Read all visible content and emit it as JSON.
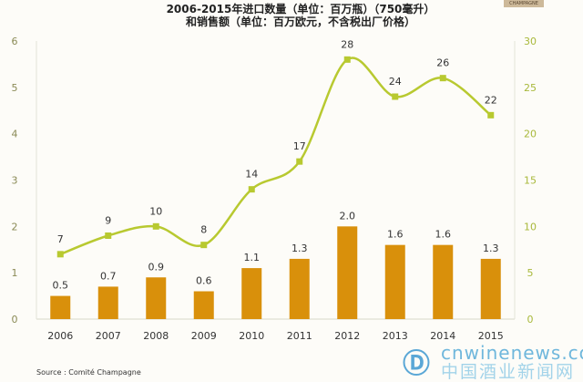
{
  "title_line1": "2006-2015年进口数量（单位：百万瓶）（750毫升）",
  "title_line2": "和销售额（单位：百万欧元，不含税出厂价格）",
  "badge": "CHAMPAGNE",
  "source": "Source : Comité Champagne",
  "watermark": {
    "domain": "cnwinenews.com",
    "name": "中国酒业新闻网"
  },
  "colors": {
    "bar": "#d9900b",
    "line": "#b8c930",
    "left_axis": "#8a8a55",
    "right_axis": "#a8b83a"
  },
  "chart_data": {
    "type": "bar+line",
    "categories": [
      "2006",
      "2007",
      "2008",
      "2009",
      "2010",
      "2011",
      "2012",
      "2013",
      "2014",
      "2015"
    ],
    "series": [
      {
        "name": "进口数量（百万瓶）",
        "type": "bar",
        "axis": "left",
        "values": [
          0.5,
          0.7,
          0.9,
          0.6,
          1.1,
          1.3,
          2.0,
          1.6,
          1.6,
          1.3
        ],
        "labels": [
          "0.5",
          "0.7",
          "0.9",
          "0.6",
          "1.1",
          "1.3",
          "2.0",
          "1.6",
          "1.6",
          "1.3"
        ]
      },
      {
        "name": "销售额（百万欧元）",
        "type": "line",
        "axis": "right",
        "values": [
          7,
          9,
          10,
          8,
          14,
          17,
          28,
          24,
          26,
          22
        ],
        "labels": [
          "7",
          "9",
          "10",
          "8",
          "14",
          "17",
          "28",
          "24",
          "26",
          "22"
        ]
      }
    ],
    "ylim_left": [
      0,
      6
    ],
    "yticks_left": [
      "0",
      "1",
      "2",
      "3",
      "4",
      "5",
      "6"
    ],
    "ylim_right": [
      0,
      30
    ],
    "yticks_right": [
      "0",
      "5",
      "10",
      "15",
      "20",
      "25",
      "30"
    ],
    "grid": false,
    "legend": "none"
  }
}
